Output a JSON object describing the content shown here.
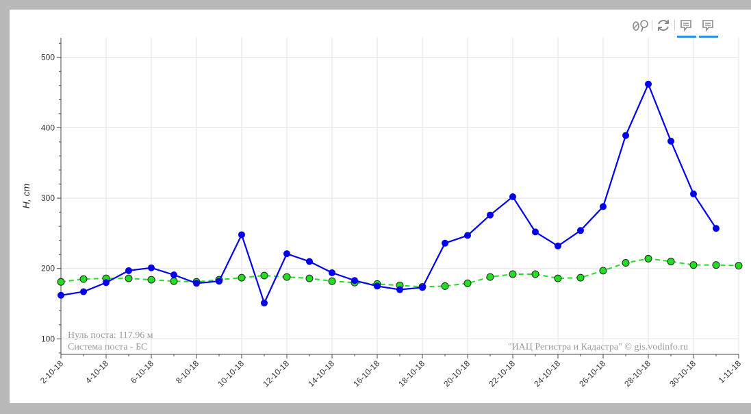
{
  "toolbar": {
    "icons": [
      "wheel-zoom-icon",
      "reset-icon",
      "hover-icon",
      "hover-icon"
    ]
  },
  "annotations": {
    "zero_level": "Нуль поста: 117.96 м",
    "system": "Система поста - БС",
    "credit": "\"ИАЦ Регистра и Кадастра\" © gis.vodinfo.ru"
  },
  "chart_data": {
    "type": "line",
    "ylabel": "H, cm",
    "xlabel": "",
    "ylim": [
      78,
      528
    ],
    "xlim": [
      0,
      30
    ],
    "yticks": [
      100,
      200,
      300,
      400,
      500
    ],
    "xtick_labels": [
      "2-10-18",
      "4-10-18",
      "6-10-18",
      "8-10-18",
      "10-10-18",
      "12-10-18",
      "14-10-18",
      "16-10-18",
      "18-10-18",
      "20-10-18",
      "22-10-18",
      "24-10-18",
      "26-10-18",
      "28-10-18",
      "30-10-18",
      "1-11-18"
    ],
    "grid": true,
    "series": [
      {
        "color": "#0000ee",
        "style": "solid",
        "x": [
          0,
          1,
          2,
          3,
          4,
          5,
          6,
          7,
          8,
          9,
          10,
          11,
          12,
          13,
          14,
          15,
          16,
          17,
          18,
          19,
          20,
          21,
          22,
          23,
          24,
          25,
          26,
          27,
          28,
          29
        ],
        "values": [
          162,
          167,
          180,
          197,
          201,
          191,
          179,
          182,
          248,
          151,
          221,
          210,
          194,
          183,
          175,
          170,
          173,
          236,
          247,
          276,
          302,
          252,
          232,
          254,
          288,
          389,
          462,
          381,
          306,
          257
        ]
      },
      {
        "color": "#22dd22",
        "style": "dashed",
        "x": [
          0,
          1,
          2,
          3,
          4,
          5,
          6,
          7,
          8,
          9,
          10,
          11,
          12,
          13,
          14,
          15,
          16,
          17,
          18,
          19,
          20,
          21,
          22,
          23,
          24,
          25,
          26,
          27,
          28,
          29,
          30
        ],
        "values": [
          181,
          185,
          186,
          186,
          184,
          182,
          181,
          184,
          187,
          190,
          188,
          186,
          182,
          180,
          178,
          176,
          174,
          175,
          179,
          188,
          192,
          192,
          186,
          187,
          197,
          208,
          214,
          210,
          205,
          205,
          204
        ]
      }
    ]
  }
}
